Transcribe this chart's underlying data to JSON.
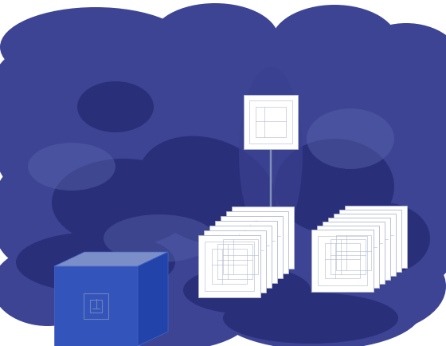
{
  "bg_color": "#ffffff",
  "main_shape_color": "#3d4494",
  "blob_dark": "#2a2f7a",
  "blob_mid": "#3a4090",
  "blob_lighter": "#5560a8",
  "chip_face": "#ffffff",
  "chip_border": "#b0b8d0",
  "box_top": "#7b8ec8",
  "box_front": "#3355bb",
  "box_side": "#2244aa",
  "line_color": "#8090b8",
  "figsize": [
    5.6,
    4.35
  ],
  "dpi": 100
}
